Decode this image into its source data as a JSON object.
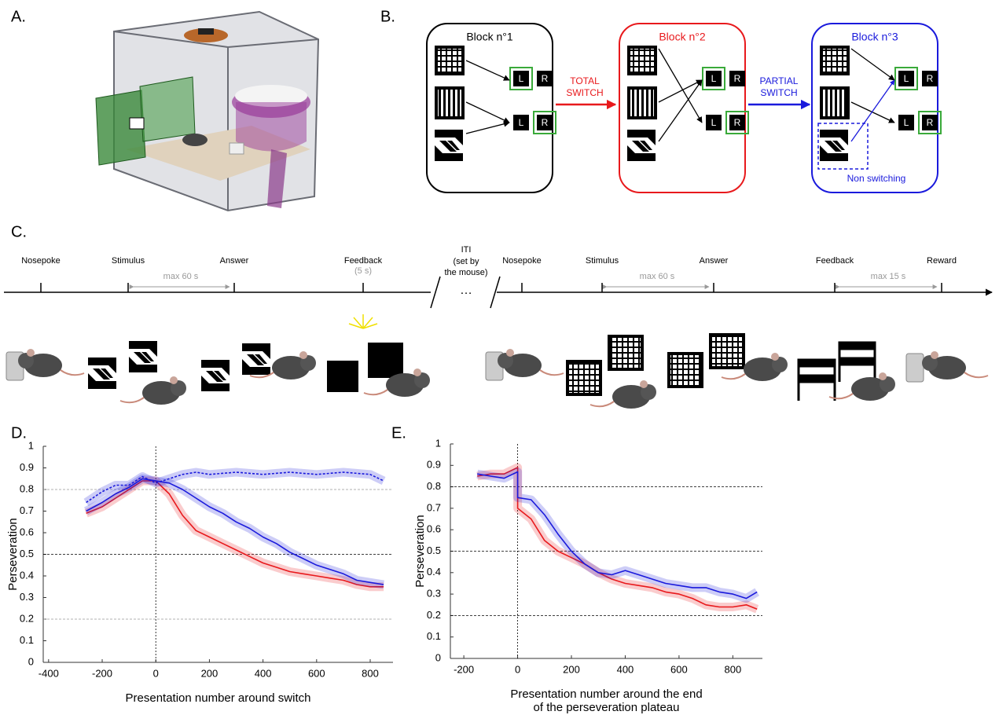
{
  "panels": {
    "a": "A.",
    "b": "B.",
    "c": "C.",
    "d": "D.",
    "e": "E."
  },
  "diagram": {
    "blocks": [
      {
        "title": "Block n°1",
        "left": "L",
        "right": "R",
        "left2": "L",
        "right2": "R"
      },
      {
        "title": "Block n°2",
        "left": "L",
        "right": "R",
        "left2": "L",
        "right2": "R"
      },
      {
        "title": "Block n°3",
        "left": "L",
        "right": "R",
        "left2": "L",
        "right2": "R"
      }
    ],
    "switch_1": [
      "TOTAL",
      "SWITCH"
    ],
    "switch_2": [
      "PARTIAL",
      "SWITCH"
    ],
    "note": "Non switching"
  },
  "timeline": {
    "events_1": [
      "Nosepoke",
      "Stimulus",
      "Answer",
      "Feedback"
    ],
    "feedback_duration": "(5 s)",
    "interval_1": "max 60 s",
    "iti": [
      "ITI",
      "(set by",
      "the mouse)"
    ],
    "ellipsis": "…",
    "events_2": [
      "Nosepoke",
      "Stimulus",
      "Answer",
      "Feedback",
      "Reward"
    ],
    "interval_2": "max 60 s",
    "interval_3": "max 15 s"
  },
  "chart_data": [
    {
      "type": "line",
      "xlabel": "Presentation number around switch",
      "ylabel": "Perseveration",
      "xlim": [
        -420,
        885
      ],
      "ylim": [
        0,
        1
      ],
      "xticks": [
        -400,
        -200,
        0,
        200,
        400,
        600,
        800
      ],
      "yticks": [
        0,
        0.1,
        0.2,
        0.3,
        0.4,
        0.5,
        0.6,
        0.7,
        0.8,
        0.9,
        1
      ],
      "hlines": [
        0.2,
        0.5,
        0.8
      ],
      "vline": 0,
      "series": [
        {
          "color": "#e8191c",
          "line_style": "solid",
          "x": [
            -260,
            -200,
            -150,
            -100,
            -50,
            0,
            50,
            100,
            150,
            200,
            250,
            300,
            350,
            400,
            450,
            500,
            550,
            600,
            650,
            700,
            750,
            800,
            850
          ],
          "values": [
            0.69,
            0.72,
            0.76,
            0.8,
            0.84,
            0.84,
            0.78,
            0.68,
            0.61,
            0.58,
            0.55,
            0.52,
            0.49,
            0.46,
            0.44,
            0.42,
            0.41,
            0.4,
            0.39,
            0.38,
            0.36,
            0.35,
            0.35
          ]
        },
        {
          "color": "#1a1adc",
          "line_style": "solid",
          "x": [
            -260,
            -200,
            -150,
            -100,
            -50,
            0,
            50,
            100,
            150,
            200,
            250,
            300,
            350,
            400,
            450,
            500,
            550,
            600,
            650,
            700,
            750,
            800,
            850
          ],
          "values": [
            0.7,
            0.74,
            0.78,
            0.81,
            0.85,
            0.84,
            0.83,
            0.8,
            0.76,
            0.72,
            0.69,
            0.65,
            0.62,
            0.58,
            0.55,
            0.51,
            0.48,
            0.45,
            0.43,
            0.41,
            0.38,
            0.37,
            0.36
          ]
        },
        {
          "color": "#1a1adc",
          "line_style": "dotted",
          "x": [
            -260,
            -200,
            -150,
            -100,
            -50,
            0,
            50,
            100,
            150,
            200,
            300,
            400,
            500,
            600,
            700,
            800,
            850
          ],
          "values": [
            0.74,
            0.79,
            0.82,
            0.82,
            0.86,
            0.83,
            0.85,
            0.87,
            0.88,
            0.87,
            0.88,
            0.87,
            0.88,
            0.87,
            0.88,
            0.87,
            0.84
          ]
        }
      ]
    },
    {
      "type": "line",
      "xlabel": [
        "Presentation number around the end",
        "of the perseveration plateau"
      ],
      "ylabel": "Perseveration",
      "xlim": [
        -250,
        910
      ],
      "ylim": [
        0,
        1
      ],
      "xticks": [
        -200,
        0,
        200,
        400,
        600,
        800
      ],
      "yticks": [
        0,
        0.1,
        0.2,
        0.3,
        0.4,
        0.5,
        0.6,
        0.7,
        0.8,
        0.9,
        1
      ],
      "hlines": [
        0.2,
        0.5,
        0.8
      ],
      "vline": 0,
      "series": [
        {
          "color": "#e8191c",
          "line_style": "solid",
          "x": [
            -150,
            -100,
            -50,
            0,
            0,
            50,
            100,
            150,
            200,
            250,
            300,
            350,
            400,
            450,
            500,
            550,
            600,
            650,
            700,
            750,
            800,
            850,
            890
          ],
          "values": [
            0.85,
            0.86,
            0.86,
            0.89,
            0.7,
            0.65,
            0.55,
            0.5,
            0.47,
            0.44,
            0.4,
            0.37,
            0.35,
            0.34,
            0.33,
            0.31,
            0.3,
            0.28,
            0.25,
            0.24,
            0.24,
            0.25,
            0.23
          ]
        },
        {
          "color": "#1a1adc",
          "line_style": "solid",
          "x": [
            -150,
            -100,
            -50,
            0,
            0,
            50,
            100,
            150,
            200,
            250,
            300,
            350,
            400,
            450,
            500,
            550,
            600,
            650,
            700,
            750,
            800,
            850,
            890
          ],
          "values": [
            0.86,
            0.85,
            0.84,
            0.87,
            0.75,
            0.74,
            0.67,
            0.58,
            0.5,
            0.44,
            0.4,
            0.39,
            0.41,
            0.39,
            0.37,
            0.35,
            0.34,
            0.33,
            0.33,
            0.31,
            0.3,
            0.28,
            0.31
          ]
        }
      ]
    }
  ]
}
